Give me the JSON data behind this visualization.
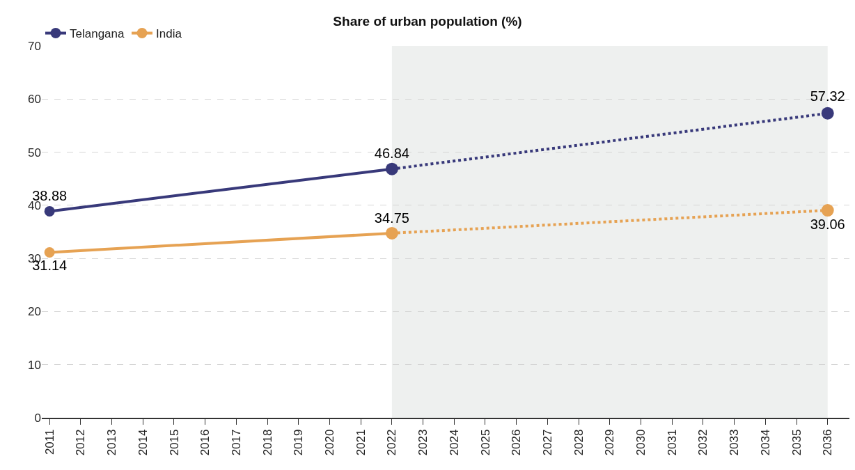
{
  "chart_data": {
    "type": "line",
    "title": "Share of urban population (%)",
    "series": [
      {
        "name": "Telangana",
        "color": "#38397a",
        "x": [
          2011,
          2022
        ],
        "values": [
          38.88,
          46.84
        ],
        "value_labels": [
          "38.88",
          "46.84"
        ],
        "line_style": "solid"
      },
      {
        "name": "India",
        "color": "#e6a253",
        "x": [
          2011,
          2022
        ],
        "values": [
          31.14,
          34.75
        ],
        "value_labels": [
          "31.14",
          "34.75"
        ],
        "line_style": "solid"
      },
      {
        "color": "#38397a",
        "x": [
          2022,
          2036
        ],
        "values": [
          46.84,
          57.32
        ],
        "value_labels": [
          null,
          "57.32"
        ],
        "line_style": "dotted"
      },
      {
        "color": "#e6a253",
        "x": [
          2022,
          2036
        ],
        "values": [
          34.75,
          39.06
        ],
        "value_labels": [
          null,
          "39.06"
        ],
        "line_style": "dotted"
      }
    ],
    "xlim": [
      2010.75,
      2036.7
    ],
    "xticks": [
      2011,
      2012,
      2013,
      2014,
      2015,
      2016,
      2017,
      2018,
      2019,
      2020,
      2021,
      2022,
      2023,
      2024,
      2025,
      2026,
      2027,
      2028,
      2029,
      2030,
      2031,
      2032,
      2033,
      2034,
      2035,
      2036
    ],
    "ylim": [
      0,
      70
    ],
    "yticks": [
      0,
      10,
      20,
      30,
      40,
      50,
      60,
      70
    ],
    "bands": [
      {
        "axis": "x",
        "from": 2022,
        "to": 2036,
        "color": "#eef0ef"
      }
    ],
    "grid": "y",
    "legend": "top left",
    "marker": "circle"
  }
}
